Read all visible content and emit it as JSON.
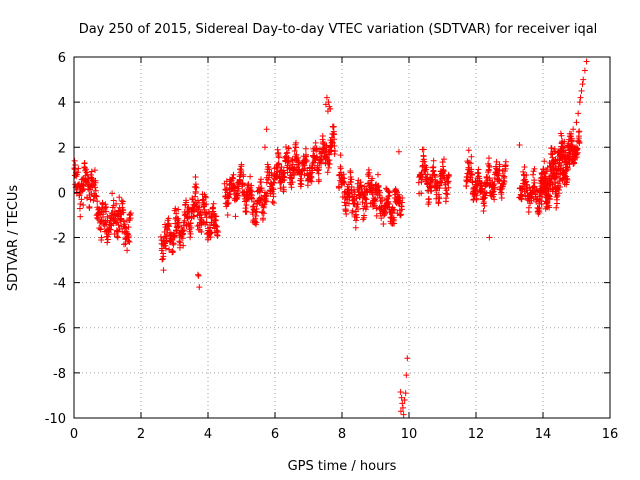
{
  "chart_data": {
    "type": "scatter",
    "title": "Day 250 of 2015, Sidereal Day-to-day VTEC variation (SDTVAR) for receiver iqal",
    "xlabel": "GPS time / hours",
    "ylabel": "SDTVAR / TECUs",
    "xlim": [
      0,
      16
    ],
    "ylim": [
      -10,
      6
    ],
    "x_ticks": [
      0,
      2,
      4,
      6,
      8,
      10,
      12,
      14,
      16
    ],
    "x_tick_labels": [
      "0",
      "2",
      "4",
      "6",
      "8",
      "10",
      "12",
      "14",
      "16"
    ],
    "y_ticks": [
      -10,
      -8,
      -6,
      -4,
      -2,
      0,
      2,
      4,
      6
    ],
    "y_tick_labels": [
      "-10",
      "-8",
      "-6",
      "-4",
      "-2",
      "0",
      "2",
      "4",
      "6"
    ],
    "grid": true,
    "marker": "+",
    "marker_color": "#ff0000",
    "segments": [
      {
        "x": [
          0.0,
          0.5,
          0.9,
          1.3,
          1.7
        ],
        "y": [
          0.2,
          0.4,
          -1.6,
          -1.0,
          -1.8
        ],
        "spread": 0.7
      },
      {
        "x": [
          2.6,
          3.0,
          3.3,
          3.6,
          3.9,
          4.3
        ],
        "y": [
          -2.2,
          -1.8,
          -1.5,
          -0.6,
          -1.1,
          -1.6
        ],
        "spread": 0.6
      },
      {
        "x": [
          4.5,
          5.0,
          5.4,
          5.9
        ],
        "y": [
          0.0,
          0.3,
          -0.7,
          0.4
        ],
        "spread": 0.5
      },
      {
        "x": [
          5.9,
          6.5,
          7.0,
          7.4,
          7.8
        ],
        "y": [
          0.6,
          1.2,
          1.0,
          1.6,
          2.1
        ],
        "spread": 0.5
      },
      {
        "x": [
          7.9,
          8.4,
          8.9,
          9.4,
          9.8
        ],
        "y": [
          0.5,
          -0.4,
          0.1,
          -0.8,
          -0.3
        ],
        "spread": 0.6
      },
      {
        "x": [
          10.3,
          10.7,
          11.2
        ],
        "y": [
          1.0,
          0.4,
          0.7
        ],
        "spread": 0.5
      },
      {
        "x": [
          11.7,
          12.1,
          12.5,
          12.9
        ],
        "y": [
          0.9,
          0.1,
          0.5,
          0.7
        ],
        "spread": 0.5
      },
      {
        "x": [
          13.3,
          13.9,
          14.4,
          14.9
        ],
        "y": [
          0.3,
          -0.3,
          0.4,
          1.5
        ],
        "spread": 0.5
      },
      {
        "x": [
          13.9,
          14.3,
          14.7,
          15.1
        ],
        "y": [
          0.1,
          1.3,
          1.8,
          2.0
        ],
        "spread": 0.5
      }
    ],
    "extra_points": [
      {
        "x": 3.74,
        "y": -4.2
      },
      {
        "x": 3.72,
        "y": -3.7
      },
      {
        "x": 3.7,
        "y": -3.65
      },
      {
        "x": 5.75,
        "y": 2.8
      },
      {
        "x": 5.7,
        "y": 2.0
      },
      {
        "x": 7.55,
        "y": 4.2
      },
      {
        "x": 7.6,
        "y": 4.0
      },
      {
        "x": 7.62,
        "y": 3.8
      },
      {
        "x": 7.58,
        "y": 3.6
      },
      {
        "x": 7.52,
        "y": 3.9
      },
      {
        "x": 7.65,
        "y": 3.7
      },
      {
        "x": 9.75,
        "y": -8.85
      },
      {
        "x": 9.78,
        "y": -9.1
      },
      {
        "x": 9.8,
        "y": -9.35
      },
      {
        "x": 9.82,
        "y": -9.55
      },
      {
        "x": 9.76,
        "y": -9.7
      },
      {
        "x": 9.84,
        "y": -9.85
      },
      {
        "x": 9.87,
        "y": -9.2
      },
      {
        "x": 9.9,
        "y": -8.9
      },
      {
        "x": 9.92,
        "y": -8.1
      },
      {
        "x": 9.95,
        "y": -7.35
      },
      {
        "x": 9.7,
        "y": 1.8
      },
      {
        "x": 10.4,
        "y": 1.9
      },
      {
        "x": 13.3,
        "y": 2.1
      },
      {
        "x": 12.4,
        "y": -2.0
      },
      {
        "x": 14.8,
        "y": 2.6
      },
      {
        "x": 14.9,
        "y": 2.8
      },
      {
        "x": 15.0,
        "y": 3.1
      },
      {
        "x": 15.05,
        "y": 3.5
      },
      {
        "x": 15.1,
        "y": 4.0
      },
      {
        "x": 15.15,
        "y": 4.5
      },
      {
        "x": 15.2,
        "y": 5.0
      },
      {
        "x": 15.25,
        "y": 5.4
      },
      {
        "x": 15.3,
        "y": 5.8
      },
      {
        "x": 15.12,
        "y": 4.2
      },
      {
        "x": 15.18,
        "y": 4.8
      }
    ]
  }
}
